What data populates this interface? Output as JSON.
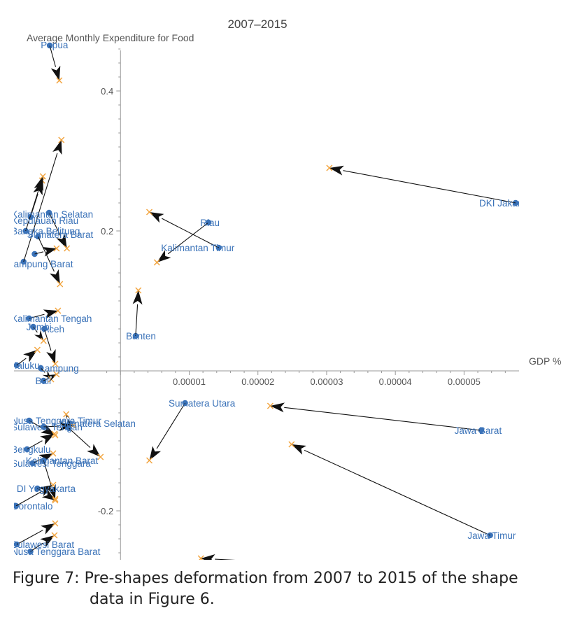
{
  "chart_data": {
    "type": "scatter",
    "title": "2007–2015",
    "ylabel": "Average Monthly Expenditure for Food",
    "xlabel": "GDP %",
    "xlim": [
      -1.55e-05,
      5.8e-05
    ],
    "ylim": [
      -0.27,
      0.47
    ],
    "xticks": [
      1e-05,
      2e-05,
      3e-05,
      4e-05,
      5e-05
    ],
    "xtick_labels": [
      "0.00001",
      "0.00002",
      "0.00003",
      "0.00004",
      "0.00005"
    ],
    "yticks": [
      0.4,
      0.2,
      -0.2
    ],
    "ytick_labels": [
      "0.4",
      "0.2",
      "-0.2"
    ],
    "colors": {
      "start_point": "#3a72b8",
      "end_point": "#f2a33c",
      "arrow": "#111111",
      "label": "#3a72b8",
      "axis": "#999999",
      "text": "#555555"
    },
    "point_marker_2007": "circle",
    "point_marker_2015": "x",
    "series": [
      {
        "label": "Papua",
        "x0": -1.03e-05,
        "y0": 0.465,
        "x1": -8.9e-06,
        "y1": 0.415
      },
      {
        "label": "DKI Jakarta",
        "x0": 5.75e-05,
        "y0": 0.24,
        "x1": 3.04e-05,
        "y1": 0.29
      },
      {
        "label": "Riau",
        "x0": 1.28e-05,
        "y0": 0.212,
        "x1": 5.3e-06,
        "y1": 0.155
      },
      {
        "label": "Kalimantan Timur",
        "x0": 1.43e-05,
        "y0": 0.176,
        "x1": 4.2e-06,
        "y1": 0.227
      },
      {
        "label": "Kalimantan Selatan",
        "x0": -1.31e-05,
        "y0": 0.22,
        "x1": -1.14e-05,
        "y1": 0.272
      },
      {
        "label": "Kepulauan Riau",
        "x0": -1.04e-05,
        "y0": 0.226,
        "x1": -7.8e-06,
        "y1": 0.175
      },
      {
        "label": "Kepulauan Bangka Belitung",
        "x0": -1.38e-05,
        "y0": 0.2,
        "x1": -1.13e-05,
        "y1": 0.278
      },
      {
        "label": "Sumatera Barat",
        "x0": -1.2e-05,
        "y0": 0.192,
        "x1": -8.8e-06,
        "y1": 0.124
      },
      {
        "label": "Lampung Barat",
        "x0": -1.41e-05,
        "y0": 0.156,
        "x1": -8.6e-06,
        "y1": 0.33
      },
      {
        "label": "Papua Barat",
        "x0": -1.25e-05,
        "y0": 0.167,
        "x1": -9.3e-06,
        "y1": 0.175
      },
      {
        "label": "Kalimantan Tengah",
        "x0": -1.33e-05,
        "y0": 0.075,
        "x1": -9.1e-06,
        "y1": 0.086
      },
      {
        "label": "Jambi",
        "x0": -1.27e-05,
        "y0": 0.063,
        "x1": -1.12e-05,
        "y1": 0.043
      },
      {
        "label": "Aceh",
        "x0": -1.11e-05,
        "y0": 0.06,
        "x1": -9.5e-06,
        "y1": 0.01
      },
      {
        "label": "Banten",
        "x0": 2.2e-06,
        "y0": 0.05,
        "x1": 2.6e-06,
        "y1": 0.115
      },
      {
        "label": "Maluku",
        "x0": -1.51e-05,
        "y0": 0.008,
        "x1": -1.21e-05,
        "y1": 0.03
      },
      {
        "label": "Lampung",
        "x0": -1.16e-05,
        "y0": 0.004,
        "x1": -1.01e-05,
        "y1": -0.012
      },
      {
        "label": "Bali",
        "x0": -1.12e-05,
        "y0": -0.014,
        "x1": -9.3e-06,
        "y1": -0.005
      },
      {
        "label": "Sumatera Utara",
        "x0": 9.4e-06,
        "y0": -0.046,
        "x1": 4.2e-06,
        "y1": -0.128
      },
      {
        "label": "Sumatera Selatan",
        "x0": -7.4e-06,
        "y0": -0.075,
        "x1": -7.9e-06,
        "y1": -0.062
      },
      {
        "label": "Nusa Tenggara Timur",
        "x0": -1.33e-05,
        "y0": -0.071,
        "x1": -9.5e-06,
        "y1": -0.092
      },
      {
        "label": "Sulawesi Tengah",
        "x0": -1.12e-05,
        "y0": -0.08,
        "x1": -6.9e-06,
        "y1": -0.078
      },
      {
        "label": "Sulawesi Selatan",
        "x0": -7.5e-06,
        "y0": -0.082,
        "x1": -2.9e-06,
        "y1": -0.123
      },
      {
        "label": "Jawa Barat",
        "x0": 5.25e-05,
        "y0": -0.085,
        "x1": 2.18e-05,
        "y1": -0.05
      },
      {
        "label": "Jawa Timur",
        "x0": 5.38e-05,
        "y0": -0.235,
        "x1": 2.49e-05,
        "y1": -0.105
      },
      {
        "label": "Jawa Tengah",
        "x0": 2.55e-05,
        "y0": -0.275,
        "x1": 1.17e-05,
        "y1": -0.268
      },
      {
        "label": "Bengkulu",
        "x0": -1.36e-05,
        "y0": -0.112,
        "x1": -9.6e-06,
        "y1": -0.09
      },
      {
        "label": "Sulawesi Tenggara",
        "x0": -1.28e-05,
        "y0": -0.132,
        "x1": -9.8e-06,
        "y1": -0.118
      },
      {
        "label": "Kalimantan Barat",
        "x0": -1.12e-05,
        "y0": -0.128,
        "x1": -9.5e-06,
        "y1": -0.183
      },
      {
        "label": "DI Yogyakarta",
        "x0": -1.21e-05,
        "y0": -0.168,
        "x1": -9.5e-06,
        "y1": -0.185
      },
      {
        "label": "Gorontalo",
        "x0": -1.52e-05,
        "y0": -0.193,
        "x1": -9.8e-06,
        "y1": -0.163
      },
      {
        "label": "Sulawesi Barat",
        "x0": -1.51e-05,
        "y0": -0.248,
        "x1": -9.5e-06,
        "y1": -0.218
      },
      {
        "label": "Nusa Tenggara Barat",
        "x0": -1.31e-05,
        "y0": -0.258,
        "x1": -9.6e-06,
        "y1": -0.235
      }
    ],
    "labels": [
      {
        "text": "Papua",
        "x": -1.16e-05,
        "y": 0.466,
        "anchor": "start"
      },
      {
        "text": "DKI Jakarta",
        "x": 5.22e-05,
        "y": 0.24,
        "anchor": "start"
      },
      {
        "text": "Riau",
        "x": 1.16e-05,
        "y": 0.212,
        "anchor": "start"
      },
      {
        "text": "Kalimantan Timur",
        "x": 5.9e-06,
        "y": 0.176,
        "anchor": "start"
      },
      {
        "text": "Kalimantan Selatan",
        "x": -1.59e-05,
        "y": 0.224,
        "anchor": "start"
      },
      {
        "text": "Kepulauan Riau",
        "x": -1.59e-05,
        "y": 0.215,
        "anchor": "start"
      },
      {
        "text": "Bangka Belitung",
        "x": -1.59e-05,
        "y": 0.2,
        "anchor": "start"
      },
      {
        "text": "Sumatera Barat",
        "x": -1.36e-05,
        "y": 0.195,
        "anchor": "start"
      },
      {
        "text": "Lampung Barat",
        "x": -1.63e-05,
        "y": 0.153,
        "anchor": "start"
      },
      {
        "text": "Kalimantan Tengah",
        "x": -1.59e-05,
        "y": 0.075,
        "anchor": "start"
      },
      {
        "text": "Jambi",
        "x": -1.37e-05,
        "y": 0.063,
        "anchor": "start"
      },
      {
        "text": "Aceh",
        "x": -1.13e-05,
        "y": 0.06,
        "anchor": "start"
      },
      {
        "text": "Banten",
        "x": 8e-07,
        "y": 0.05,
        "anchor": "start"
      },
      {
        "text": "Maluku",
        "x": -1.62e-05,
        "y": 0.008,
        "anchor": "start"
      },
      {
        "text": "Lampung",
        "x": -1.18e-05,
        "y": 0.004,
        "anchor": "start"
      },
      {
        "text": "Bali",
        "x": -1.24e-05,
        "y": -0.014,
        "anchor": "start"
      },
      {
        "text": "Sumatera Utara",
        "x": 7e-06,
        "y": -0.046,
        "anchor": "start"
      },
      {
        "text": "Sumatera Selatan",
        "x": -8.8e-06,
        "y": -0.075,
        "anchor": "start"
      },
      {
        "text": "Nusa Tenggara Timur",
        "x": -1.59e-05,
        "y": -0.071,
        "anchor": "start"
      },
      {
        "text": "Sulawesi Tengah",
        "x": -1.59e-05,
        "y": -0.08,
        "anchor": "start"
      },
      {
        "text": "Jawa Barat",
        "x": 4.86e-05,
        "y": -0.085,
        "anchor": "start"
      },
      {
        "text": "Jawa Timur",
        "x": 5.05e-05,
        "y": -0.235,
        "anchor": "start"
      },
      {
        "text": "Jawa Tengah",
        "x": 2.11e-05,
        "y": -0.275,
        "anchor": "start"
      },
      {
        "text": "Bengkulu",
        "x": -1.59e-05,
        "y": -0.112,
        "anchor": "start"
      },
      {
        "text": "Sulawesi Tenggara",
        "x": -1.59e-05,
        "y": -0.132,
        "anchor": "start"
      },
      {
        "text": "Kalimantan Barat",
        "x": -1.38e-05,
        "y": -0.128,
        "anchor": "start"
      },
      {
        "text": "DI Yogyakarta",
        "x": -1.51e-05,
        "y": -0.168,
        "anchor": "start"
      },
      {
        "text": "Gorontalo",
        "x": -1.59e-05,
        "y": -0.193,
        "anchor": "start"
      },
      {
        "text": "Sulawesi Barat",
        "x": -1.59e-05,
        "y": -0.248,
        "anchor": "start"
      },
      {
        "text": "Nusa Tenggara Barat",
        "x": -1.59e-05,
        "y": -0.258,
        "anchor": "start"
      }
    ]
  },
  "caption": {
    "line1": "Figure 7: Pre-shapes deformation from 2007 to 2015 of the shape",
    "line2": "data in Figure 6."
  }
}
